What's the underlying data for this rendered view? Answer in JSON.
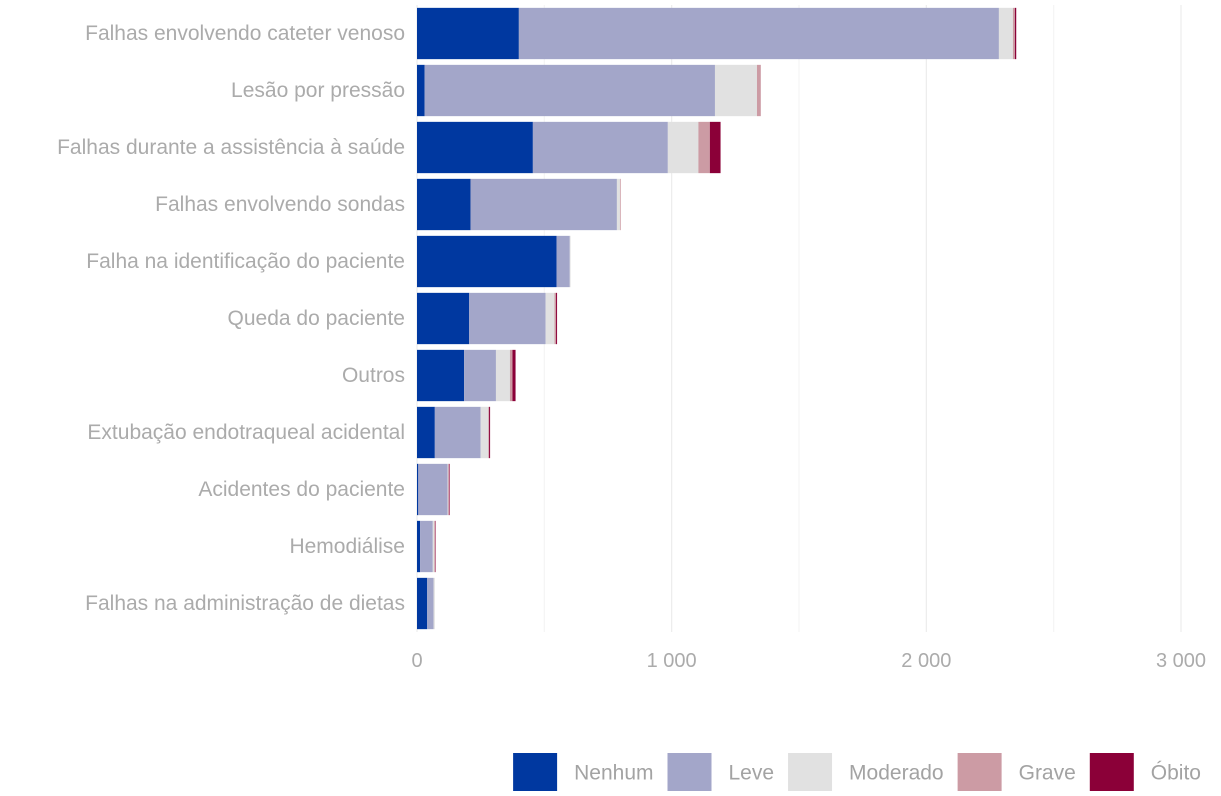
{
  "chart_data": {
    "type": "bar",
    "orientation": "horizontal",
    "stacked": true,
    "title": "",
    "xlabel": "",
    "ylabel": "",
    "xlim": [
      0,
      3000
    ],
    "x_ticks": [
      0,
      1000,
      2000,
      3000
    ],
    "x_tick_labels": [
      "0",
      "1 000",
      "2 000",
      "3 000"
    ],
    "grid": true,
    "legend_position": "bottom-right",
    "categories": [
      "Falhas envolvendo cateter venoso",
      "Lesão por pressão",
      "Falhas durante a assistência à saúde",
      "Falhas envolvendo sondas",
      "Falha na identificação do paciente",
      "Queda do paciente",
      "Outros",
      "Extubação endotraqueal acidental",
      "Acidentes do paciente",
      "Hemodiálise",
      "Falhas na administração de dietas"
    ],
    "series": [
      {
        "name": "Nenhum",
        "color": "#0038a0",
        "values": [
          400,
          30,
          455,
          210,
          548,
          205,
          185,
          70,
          5,
          12,
          40
        ]
      },
      {
        "name": "Leve",
        "color": "#a3a6c9",
        "values": [
          1885,
          1140,
          530,
          575,
          52,
          300,
          125,
          180,
          115,
          50,
          25
        ]
      },
      {
        "name": "Moderado",
        "color": "#e1e1e1",
        "values": [
          55,
          165,
          120,
          12,
          3,
          35,
          55,
          30,
          3,
          6,
          5
        ]
      },
      {
        "name": "Grave",
        "color": "#cc9ba4",
        "values": [
          8,
          15,
          45,
          3,
          0,
          6,
          10,
          3,
          2,
          3,
          0
        ]
      },
      {
        "name": "Óbito",
        "color": "#8b0038",
        "values": [
          5,
          0,
          42,
          0,
          0,
          4,
          12,
          4,
          3,
          2,
          0
        ]
      }
    ]
  }
}
